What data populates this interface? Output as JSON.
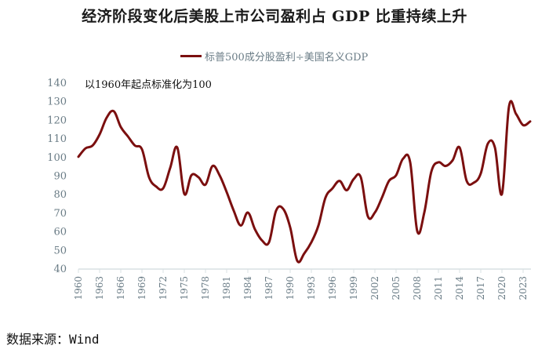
{
  "chart_data": {
    "type": "line",
    "title": "经济阶段变化后美股上市公司盈利占 GDP 比重持续上升",
    "annotation": "以1960年起点标准化为100",
    "source": "数据来源：Wind",
    "xlabel": "",
    "ylabel": "",
    "ylim": [
      40,
      140
    ],
    "yticks": [
      40,
      50,
      60,
      70,
      80,
      90,
      100,
      110,
      120,
      130,
      140
    ],
    "xlim": [
      1960,
      2024
    ],
    "xticks": [
      "1960",
      "1963",
      "1966",
      "1969",
      "1972",
      "1975",
      "1978",
      "1981",
      "1984",
      "1987",
      "1990",
      "1993",
      "1996",
      "1999",
      "2002",
      "2005",
      "2008",
      "2011",
      "2014",
      "2017",
      "2020",
      "2023"
    ],
    "grid": false,
    "legend": "top-center",
    "series": [
      {
        "name": "标普500成分股盈利÷美国名义GDP",
        "color": "#7b0f0f",
        "x": [
          1960,
          1961,
          1962,
          1963,
          1964,
          1965,
          1966,
          1967,
          1968,
          1969,
          1970,
          1971,
          1972,
          1973,
          1974,
          1975,
          1976,
          1977,
          1978,
          1979,
          1980,
          1981,
          1982,
          1983,
          1984,
          1985,
          1986,
          1987,
          1988,
          1989,
          1990,
          1991,
          1992,
          1993,
          1994,
          1995,
          1996,
          1997,
          1998,
          1999,
          2000,
          2001,
          2002,
          2003,
          2004,
          2005,
          2006,
          2007,
          2008,
          2009,
          2010,
          2011,
          2012,
          2013,
          2014,
          2015,
          2016,
          2017,
          2018,
          2019,
          2020,
          2021,
          2022,
          2023,
          2024
        ],
        "values": [
          100,
          104.5,
          106,
          112,
          121,
          124.5,
          116,
          111,
          106,
          104,
          89,
          84,
          83,
          94,
          105,
          80,
          90,
          89,
          85,
          95,
          90,
          81,
          71,
          63,
          70,
          61,
          55,
          54,
          71,
          72,
          62,
          44,
          48,
          54,
          63,
          78,
          83,
          87,
          82,
          88,
          89,
          68,
          70,
          78,
          87,
          90,
          99,
          97,
          60,
          70,
          92,
          97,
          95,
          98,
          105,
          87,
          86,
          91,
          107,
          105,
          80,
          127,
          123,
          117,
          119
        ]
      }
    ]
  }
}
